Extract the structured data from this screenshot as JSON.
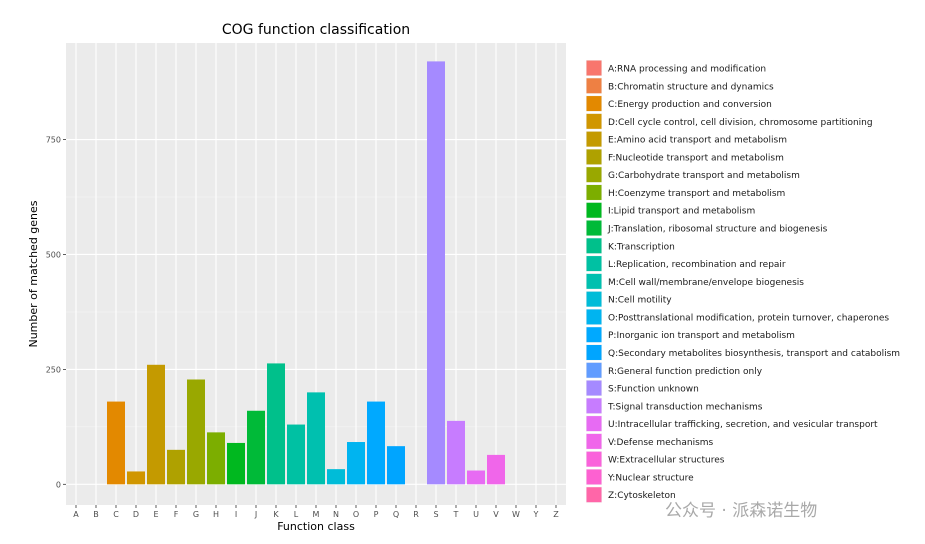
{
  "chart_data": {
    "type": "bar",
    "title": "COG function classification",
    "xlabel": "Function class",
    "ylabel": "Number of matched genes",
    "ylim": [
      -45,
      960
    ],
    "yticks": [
      0,
      250,
      500,
      750
    ],
    "grid": true,
    "legend_position": "right",
    "categories": [
      "A",
      "B",
      "C",
      "D",
      "E",
      "F",
      "G",
      "H",
      "I",
      "J",
      "K",
      "L",
      "M",
      "N",
      "O",
      "P",
      "Q",
      "R",
      "S",
      "T",
      "U",
      "V",
      "W",
      "Y",
      "Z"
    ],
    "values": [
      0,
      0,
      180,
      28,
      260,
      75,
      228,
      113,
      90,
      160,
      263,
      130,
      200,
      33,
      92,
      180,
      83,
      0,
      920,
      138,
      30,
      64,
      0,
      0,
      0
    ],
    "colors": [
      "#F8766D",
      "#EE8043",
      "#E38900",
      "#D09600",
      "#C49A00",
      "#AFA100",
      "#99A800",
      "#7CAE00",
      "#00B81F",
      "#00BA38",
      "#00C08B",
      "#00C1A3",
      "#00C0AF",
      "#00BCD8",
      "#00B4F0",
      "#00A9FF",
      "#00A5FF",
      "#619CFF",
      "#A58AFF",
      "#C77CFF",
      "#E76BF3",
      "#F066EA",
      "#FA62DB",
      "#FD61D1",
      "#FF66A8"
    ],
    "legend": [
      "A:RNA processing and modification",
      "B:Chromatin structure and dynamics",
      "C:Energy production and conversion",
      "D:Cell cycle control, cell division, chromosome partitioning",
      "E:Amino acid transport and metabolism",
      "F:Nucleotide transport and metabolism",
      "G:Carbohydrate transport and metabolism",
      "H:Coenzyme transport and metabolism",
      "I:Lipid transport and metabolism",
      "J:Translation, ribosomal structure and biogenesis",
      "K:Transcription",
      "L:Replication, recombination and repair",
      "M:Cell wall/membrane/envelope biogenesis",
      "N:Cell motility",
      "O:Posttranslational modification, protein turnover, chaperones",
      "P:Inorganic ion transport and metabolism",
      "Q:Secondary metabolites biosynthesis, transport and catabolism",
      "R:General function prediction only",
      "S:Function unknown",
      "T:Signal transduction mechanisms",
      "U:Intracellular trafficking, secretion, and vesicular transport",
      "V:Defense mechanisms",
      "W:Extracellular structures",
      "Y:Nuclear structure",
      "Z:Cytoskeleton"
    ]
  },
  "watermark": "公众号 · 派森诺生物"
}
